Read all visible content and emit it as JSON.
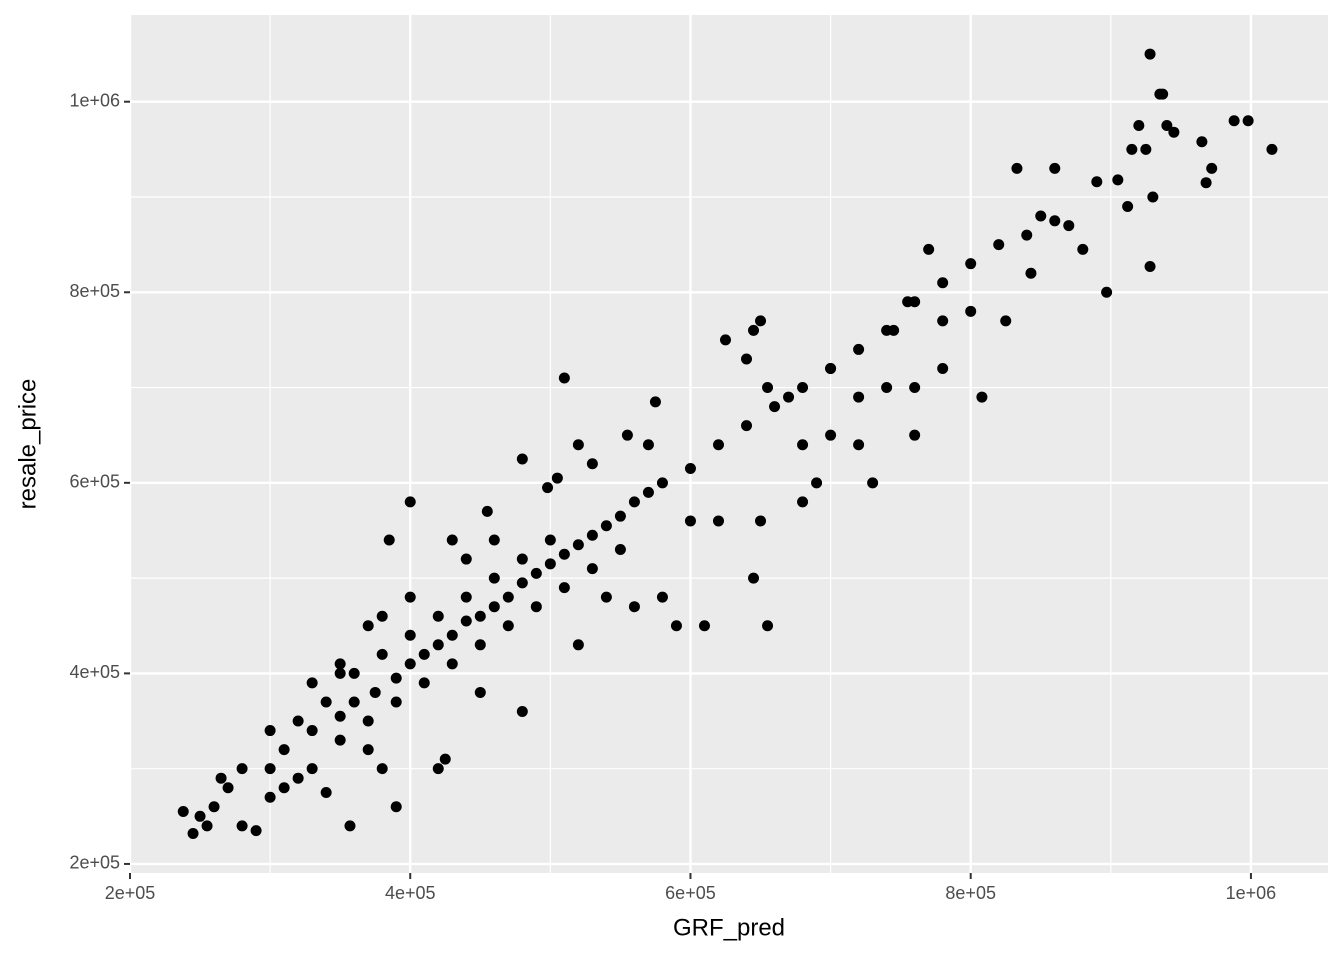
{
  "chart_data": {
    "type": "scatter",
    "x_label": "GRF_pred",
    "y_label": "resale_price",
    "xlim": [
      200000,
      1055000
    ],
    "ylim": [
      190500,
      1091000
    ],
    "xticks": [
      {
        "value": 200000,
        "label": "2e+05"
      },
      {
        "value": 400000,
        "label": "4e+05"
      },
      {
        "value": 600000,
        "label": "6e+05"
      },
      {
        "value": 800000,
        "label": "8e+05"
      },
      {
        "value": 1000000,
        "label": "1e+06"
      }
    ],
    "yticks": [
      {
        "value": 200000,
        "label": "2e+05"
      },
      {
        "value": 400000,
        "label": "4e+05"
      },
      {
        "value": 600000,
        "label": "6e+05"
      },
      {
        "value": 800000,
        "label": "8e+05"
      },
      {
        "value": 1000000,
        "label": "1e+06"
      }
    ],
    "xminor": [
      300000,
      500000,
      700000,
      900000
    ],
    "yminor": [
      300000,
      500000,
      700000,
      900000
    ],
    "grid": true,
    "color": "#000000",
    "x": [
      928000,
      935000,
      937000,
      940000,
      920000,
      915000,
      925000,
      945000,
      965000,
      988000,
      998000,
      1015000,
      972000,
      968000,
      930000,
      928000,
      912000,
      905000,
      890000,
      880000,
      897000,
      860000,
      833000,
      870000,
      850000,
      808000,
      825000,
      843000,
      800000,
      780000,
      770000,
      755000,
      745000,
      740000,
      760000,
      730000,
      720000,
      700000,
      655000,
      640000,
      645000,
      625000,
      650000,
      670000,
      680000,
      690000,
      680000,
      655000,
      645000,
      610000,
      620000,
      590000,
      580000,
      560000,
      570000,
      555000,
      575000,
      530000,
      510000,
      520000,
      480000,
      498000,
      505000,
      430000,
      455000,
      400000,
      385000,
      420000,
      425000,
      390000,
      357000,
      380000,
      340000,
      320000,
      290000,
      280000,
      255000,
      245000,
      238000,
      260000,
      270000,
      300000,
      310000,
      330000,
      350000,
      360000,
      375000,
      390000,
      400000,
      410000,
      420000,
      430000,
      440000,
      450000,
      460000,
      470000,
      480000,
      490000,
      500000,
      510000,
      520000,
      530000,
      540000,
      550000,
      560000,
      570000,
      580000,
      600000,
      620000,
      640000,
      660000,
      680000,
      700000,
      720000,
      740000,
      760000,
      780000,
      800000,
      820000,
      840000,
      860000,
      330000,
      350000,
      370000,
      390000,
      410000,
      430000,
      450000,
      470000,
      490000,
      510000,
      530000,
      550000,
      320000,
      340000,
      360000,
      380000,
      400000,
      420000,
      440000,
      460000,
      480000,
      500000,
      300000,
      310000,
      350000,
      370000,
      450000,
      480000,
      520000,
      540000,
      600000,
      650000,
      700000,
      720000,
      760000,
      780000,
      370000,
      380000,
      400000,
      350000,
      330000,
      440000,
      460000,
      300000,
      280000,
      265000,
      250000
    ],
    "values": [
      1050000,
      1008000,
      1008000,
      975000,
      975000,
      950000,
      950000,
      968000,
      958000,
      980000,
      980000,
      950000,
      930000,
      915000,
      900000,
      827000,
      890000,
      918000,
      916000,
      845000,
      800000,
      930000,
      930000,
      870000,
      880000,
      690000,
      770000,
      820000,
      780000,
      770000,
      845000,
      790000,
      760000,
      700000,
      650000,
      600000,
      640000,
      720000,
      700000,
      730000,
      760000,
      750000,
      770000,
      690000,
      640000,
      600000,
      580000,
      450000,
      500000,
      450000,
      560000,
      450000,
      480000,
      470000,
      640000,
      650000,
      685000,
      620000,
      710000,
      640000,
      625000,
      595000,
      605000,
      540000,
      570000,
      580000,
      540000,
      300000,
      310000,
      260000,
      240000,
      300000,
      275000,
      290000,
      235000,
      240000,
      240000,
      232000,
      255000,
      260000,
      280000,
      300000,
      320000,
      340000,
      355000,
      370000,
      380000,
      395000,
      410000,
      420000,
      430000,
      440000,
      455000,
      460000,
      470000,
      480000,
      495000,
      505000,
      515000,
      525000,
      535000,
      545000,
      555000,
      565000,
      580000,
      590000,
      600000,
      615000,
      640000,
      660000,
      680000,
      700000,
      720000,
      740000,
      760000,
      790000,
      810000,
      830000,
      850000,
      860000,
      875000,
      300000,
      330000,
      350000,
      370000,
      390000,
      410000,
      430000,
      450000,
      470000,
      490000,
      510000,
      530000,
      350000,
      370000,
      400000,
      420000,
      440000,
      460000,
      480000,
      500000,
      520000,
      540000,
      340000,
      280000,
      400000,
      320000,
      380000,
      360000,
      430000,
      480000,
      560000,
      560000,
      650000,
      690000,
      700000,
      720000,
      450000,
      460000,
      480000,
      410000,
      390000,
      520000,
      540000,
      270000,
      300000,
      290000,
      250000
    ]
  }
}
